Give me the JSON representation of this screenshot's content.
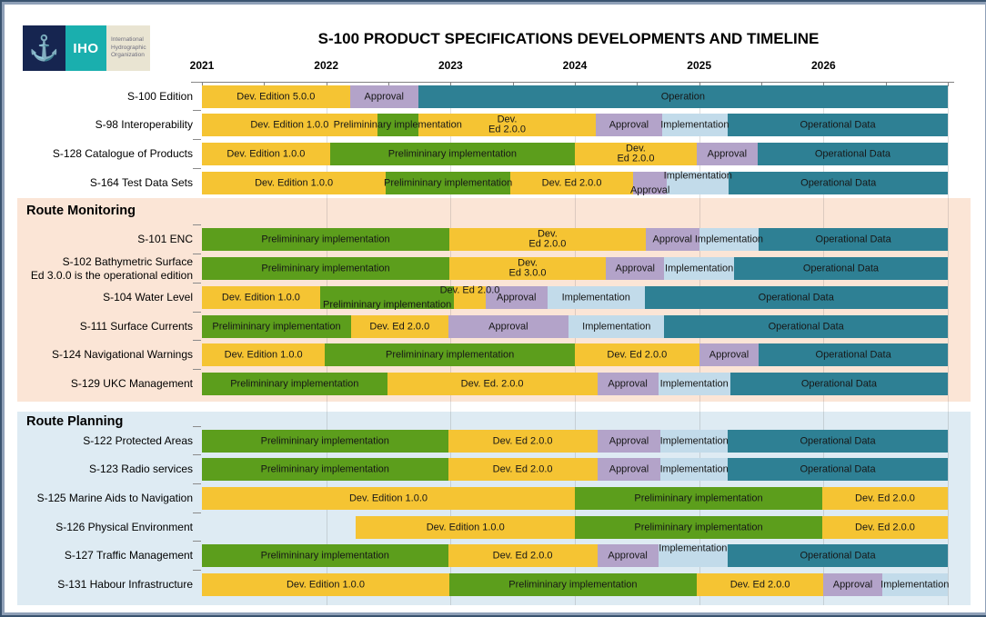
{
  "logo": {
    "iho": "IHO",
    "org_lines": [
      "International",
      "Hydrographic",
      "Organization"
    ],
    "anchor_icon": "anchor-icon"
  },
  "colors": {
    "phases": {
      "development": "#F5C433",
      "preliminary": "#5C9E1C",
      "approval": "#B3A3C9",
      "implementation": "#C2DBEA",
      "operational": "#2E8094"
    },
    "band_monitoring": "#FBE5D6",
    "band_planning": "#DEEBF3"
  },
  "chart_data": {
    "type": "bar",
    "subtype": "gantt-timeline",
    "title": "S-100 PRODUCT SPECIFICATIONS DEVELOPMENTS AND TIMELINE",
    "x_axis": {
      "tick_labels": [
        "2021",
        "2022",
        "2023",
        "2024",
        "2025",
        "2026"
      ],
      "range": [
        2021,
        2027
      ],
      "minor_tick_interval_years": 0.5,
      "grid": true
    },
    "legend": null,
    "sections": [
      {
        "header": null,
        "rows": [
          {
            "label": "S-100 Edition",
            "segments": [
              {
                "phase": "development",
                "start": 2021.0,
                "end": 2022.19,
                "label": "Dev. Edition 5.0.0"
              },
              {
                "phase": "approval",
                "start": 2022.19,
                "end": 2022.74,
                "label": "Approval"
              },
              {
                "phase": "operational",
                "start": 2022.74,
                "end": 2027.0,
                "label": "Operation"
              }
            ]
          },
          {
            "label": "S-98 Interoperability",
            "segments": [
              {
                "phase": "development",
                "start": 2021.0,
                "end": 2022.41,
                "label": "Dev. Edition 1.0.0"
              },
              {
                "phase": "preliminary",
                "start": 2022.41,
                "end": 2022.74,
                "label": "Prelimininary implementation"
              },
              {
                "phase": "development",
                "start": 2022.74,
                "end": 2024.17,
                "label": "Dev.\nEd 2.0.0"
              },
              {
                "phase": "approval",
                "start": 2024.17,
                "end": 2024.7,
                "label": "Approval"
              },
              {
                "phase": "implementation",
                "start": 2024.7,
                "end": 2025.23,
                "label": "Implementation"
              },
              {
                "phase": "operational",
                "start": 2025.23,
                "end": 2027.0,
                "label": "Operational Data"
              }
            ]
          },
          {
            "label": "S-128 Catalogue of Products",
            "segments": [
              {
                "phase": "development",
                "start": 2021.0,
                "end": 2022.03,
                "label": "Dev. Edition 1.0.0"
              },
              {
                "phase": "preliminary",
                "start": 2022.03,
                "end": 2024.0,
                "label": "Prelimininary implementation"
              },
              {
                "phase": "development",
                "start": 2024.0,
                "end": 2024.98,
                "label": "Dev.\nEd 2.0.0"
              },
              {
                "phase": "approval",
                "start": 2024.98,
                "end": 2025.47,
                "label": "Approval"
              },
              {
                "phase": "operational",
                "start": 2025.47,
                "end": 2027.0,
                "label": "Operational Data"
              }
            ]
          },
          {
            "label": "S-164 Test Data Sets",
            "segments": [
              {
                "phase": "development",
                "start": 2021.0,
                "end": 2022.48,
                "label": "Dev. Edition 1.0.0"
              },
              {
                "phase": "preliminary",
                "start": 2022.48,
                "end": 2023.48,
                "label": "Prelimininary implementation"
              },
              {
                "phase": "development",
                "start": 2023.48,
                "end": 2024.47,
                "label": "Dev. Ed 2.0.0"
              },
              {
                "phase": "approval",
                "start": 2024.47,
                "end": 2024.74,
                "label": "Approval",
                "label_offset": "down"
              },
              {
                "phase": "implementation",
                "start": 2024.74,
                "end": 2025.24,
                "label": "Implementation",
                "label_offset": "up"
              },
              {
                "phase": "operational",
                "start": 2025.24,
                "end": 2027.0,
                "label": "Operational Data"
              }
            ]
          }
        ]
      },
      {
        "header": "Route Monitoring",
        "rows": [
          {
            "label": "S-101 ENC",
            "segments": [
              {
                "phase": "preliminary",
                "start": 2021.0,
                "end": 2022.99,
                "label": "Prelimininary implementation"
              },
              {
                "phase": "development",
                "start": 2022.99,
                "end": 2024.57,
                "label": "Dev.\nEd 2.0.0"
              },
              {
                "phase": "approval",
                "start": 2024.57,
                "end": 2025.0,
                "label": "Approval"
              },
              {
                "phase": "implementation",
                "start": 2025.0,
                "end": 2025.48,
                "label": "Implementation"
              },
              {
                "phase": "operational",
                "start": 2025.48,
                "end": 2027.0,
                "label": "Operational Data"
              }
            ]
          },
          {
            "label": "S-102 Bathymetric Surface",
            "sublabel": "Ed 3.0.0 is the operational edition",
            "segments": [
              {
                "phase": "preliminary",
                "start": 2021.0,
                "end": 2022.99,
                "label": "Prelimininary implementation"
              },
              {
                "phase": "development",
                "start": 2022.99,
                "end": 2024.25,
                "label": "Dev.\nEd 3.0.0"
              },
              {
                "phase": "approval",
                "start": 2024.25,
                "end": 2024.72,
                "label": "Approval"
              },
              {
                "phase": "implementation",
                "start": 2024.72,
                "end": 2025.28,
                "label": "Implementation"
              },
              {
                "phase": "operational",
                "start": 2025.28,
                "end": 2027.0,
                "label": "Operational Data"
              }
            ]
          },
          {
            "label": "S-104 Water Level",
            "segments": [
              {
                "phase": "development",
                "start": 2021.0,
                "end": 2021.95,
                "label": "Dev. Edition 1.0.0"
              },
              {
                "phase": "preliminary",
                "start": 2021.95,
                "end": 2023.03,
                "label": "Prelimininary implementation",
                "label_offset": "down"
              },
              {
                "phase": "development",
                "start": 2023.03,
                "end": 2023.28,
                "label": "Dev. Ed 2.0.0",
                "label_offset": "up"
              },
              {
                "phase": "approval",
                "start": 2023.28,
                "end": 2023.78,
                "label": "Approval"
              },
              {
                "phase": "implementation",
                "start": 2023.78,
                "end": 2024.56,
                "label": "Implementation"
              },
              {
                "phase": "operational",
                "start": 2024.56,
                "end": 2027.0,
                "label": "Operational Data"
              }
            ]
          },
          {
            "label": "S-111 Surface Currents",
            "segments": [
              {
                "phase": "preliminary",
                "start": 2021.0,
                "end": 2022.2,
                "label": "Prelimininary implementation"
              },
              {
                "phase": "development",
                "start": 2022.2,
                "end": 2022.98,
                "label": "Dev. Ed 2.0.0"
              },
              {
                "phase": "approval",
                "start": 2022.98,
                "end": 2023.95,
                "label": "Approval"
              },
              {
                "phase": "implementation",
                "start": 2023.95,
                "end": 2024.72,
                "label": "Implementation"
              },
              {
                "phase": "operational",
                "start": 2024.72,
                "end": 2027.0,
                "label": "Operational Data"
              }
            ]
          },
          {
            "label": "S-124 Navigational Warnings",
            "segments": [
              {
                "phase": "development",
                "start": 2021.0,
                "end": 2021.99,
                "label": "Dev. Edition 1.0.0"
              },
              {
                "phase": "preliminary",
                "start": 2021.99,
                "end": 2024.0,
                "label": "Prelimininary implementation"
              },
              {
                "phase": "development",
                "start": 2024.0,
                "end": 2025.0,
                "label": "Dev. Ed 2.0.0"
              },
              {
                "phase": "approval",
                "start": 2025.0,
                "end": 2025.48,
                "label": "Approval"
              },
              {
                "phase": "operational",
                "start": 2025.48,
                "end": 2027.0,
                "label": "Operational Data"
              }
            ]
          },
          {
            "label": "S-129 UKC Management",
            "segments": [
              {
                "phase": "preliminary",
                "start": 2021.0,
                "end": 2022.49,
                "label": "Prelimininary implementation"
              },
              {
                "phase": "development",
                "start": 2022.49,
                "end": 2024.18,
                "label": "Dev. Ed. 2.0.0"
              },
              {
                "phase": "approval",
                "start": 2024.18,
                "end": 2024.67,
                "label": "Approval"
              },
              {
                "phase": "implementation",
                "start": 2024.67,
                "end": 2025.25,
                "label": "Implementation"
              },
              {
                "phase": "operational",
                "start": 2025.25,
                "end": 2027.0,
                "label": "Operational Data"
              }
            ]
          }
        ]
      },
      {
        "header": "Route Planning",
        "rows": [
          {
            "label": "S-122 Protected Areas",
            "segments": [
              {
                "phase": "preliminary",
                "start": 2021.0,
                "end": 2022.98,
                "label": "Prelimininary implementation"
              },
              {
                "phase": "development",
                "start": 2022.98,
                "end": 2024.18,
                "label": "Dev. Ed 2.0.0"
              },
              {
                "phase": "approval",
                "start": 2024.18,
                "end": 2024.69,
                "label": "Approval"
              },
              {
                "phase": "implementation",
                "start": 2024.69,
                "end": 2025.23,
                "label": "Implementation"
              },
              {
                "phase": "operational",
                "start": 2025.23,
                "end": 2027.0,
                "label": "Operational Data"
              }
            ]
          },
          {
            "label": "S-123 Radio services",
            "segments": [
              {
                "phase": "preliminary",
                "start": 2021.0,
                "end": 2022.98,
                "label": "Prelimininary implementation"
              },
              {
                "phase": "development",
                "start": 2022.98,
                "end": 2024.18,
                "label": "Dev. Ed 2.0.0"
              },
              {
                "phase": "approval",
                "start": 2024.18,
                "end": 2024.69,
                "label": "Approval"
              },
              {
                "phase": "implementation",
                "start": 2024.69,
                "end": 2025.23,
                "label": "Implementation"
              },
              {
                "phase": "operational",
                "start": 2025.23,
                "end": 2027.0,
                "label": "Operational Data"
              }
            ]
          },
          {
            "label": "S-125  Marine Aids to Navigation",
            "segments": [
              {
                "phase": "development",
                "start": 2021.0,
                "end": 2024.0,
                "label": "Dev. Edition 1.0.0"
              },
              {
                "phase": "preliminary",
                "start": 2024.0,
                "end": 2025.99,
                "label": "Prelimininary implementation"
              },
              {
                "phase": "development",
                "start": 2025.99,
                "end": 2027.0,
                "label": "Dev. Ed 2.0.0"
              }
            ]
          },
          {
            "label": "S-126 Physical Environment",
            "segments": [
              {
                "phase": "development",
                "start": 2022.24,
                "end": 2024.0,
                "label": "Dev. Edition 1.0.0"
              },
              {
                "phase": "preliminary",
                "start": 2024.0,
                "end": 2025.99,
                "label": "Prelimininary implementation"
              },
              {
                "phase": "development",
                "start": 2025.99,
                "end": 2027.0,
                "label": "Dev. Ed 2.0.0"
              }
            ]
          },
          {
            "label": "S-127 Traffic Management",
            "segments": [
              {
                "phase": "preliminary",
                "start": 2021.0,
                "end": 2022.98,
                "label": "Prelimininary implementation"
              },
              {
                "phase": "development",
                "start": 2022.98,
                "end": 2024.18,
                "label": "Dev. Ed 2.0.0"
              },
              {
                "phase": "approval",
                "start": 2024.18,
                "end": 2024.67,
                "label": "Approval"
              },
              {
                "phase": "implementation",
                "start": 2024.67,
                "end": 2025.23,
                "label": "Implementation",
                "label_offset": "up"
              },
              {
                "phase": "operational",
                "start": 2025.23,
                "end": 2027.0,
                "label": "Operational Data"
              }
            ]
          },
          {
            "label": "S-131 Habour Infrastructure",
            "segments": [
              {
                "phase": "development",
                "start": 2021.0,
                "end": 2022.99,
                "label": "Dev. Edition 1.0.0"
              },
              {
                "phase": "preliminary",
                "start": 2022.99,
                "end": 2024.98,
                "label": "Prelimininary implementation"
              },
              {
                "phase": "development",
                "start": 2024.98,
                "end": 2026.0,
                "label": "Dev. Ed 2.0.0"
              },
              {
                "phase": "approval",
                "start": 2026.0,
                "end": 2026.47,
                "label": "Approval"
              },
              {
                "phase": "implementation",
                "start": 2026.47,
                "end": 2027.0,
                "label": "Implementation"
              }
            ]
          }
        ]
      }
    ]
  }
}
